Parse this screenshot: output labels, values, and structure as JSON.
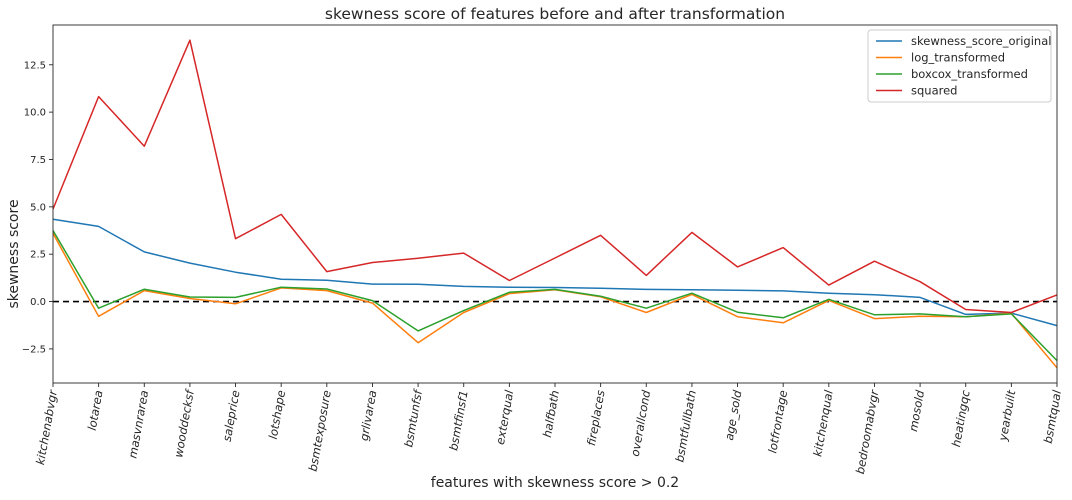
{
  "chart_data": {
    "type": "line",
    "title": "skewness score of features before and after transformation",
    "xlabel": "features with skewness score > 0.2",
    "ylabel": "skewness score",
    "categories": [
      "kitchenabvgr",
      "lotarea",
      "masvnrarea",
      "wooddecksf",
      "saleprice",
      "lotshape",
      "bsmtexposure",
      "grlivarea",
      "bsmtunfsf",
      "bsmtfinsf1",
      "exterqual",
      "halfbath",
      "fireplaces",
      "overallcond",
      "bsmtfullbath",
      "age_sold",
      "lotfrontage",
      "kitchenqual",
      "bedroomabvgr",
      "mosold",
      "heatingqc",
      "yearbuilt",
      "bsmtqual"
    ],
    "ylim": [
      -4.3,
      14.6
    ],
    "yticks": [
      -2.5,
      0.0,
      2.5,
      5.0,
      7.5,
      10.0,
      12.5
    ],
    "ytick_labels": [
      "−2.5",
      "0.0",
      "2.5",
      "5.0",
      "7.5",
      "10.0",
      "12.5"
    ],
    "reference_line": 0,
    "legend_position": "top-right",
    "grid": false,
    "series": [
      {
        "name": "skewness_score_original",
        "color": "#1f77b4",
        "values": [
          4.35,
          3.97,
          2.62,
          2.03,
          1.55,
          1.18,
          1.12,
          0.92,
          0.91,
          0.8,
          0.76,
          0.74,
          0.7,
          0.64,
          0.62,
          0.6,
          0.56,
          0.44,
          0.36,
          0.22,
          -0.68,
          -0.61,
          -1.27
        ]
      },
      {
        "name": "log_transformed",
        "color": "#ff7f0e",
        "values": [
          3.6,
          -0.78,
          0.58,
          0.16,
          -0.12,
          0.72,
          0.58,
          -0.08,
          -2.17,
          -0.58,
          0.42,
          0.62,
          0.25,
          -0.58,
          0.38,
          -0.8,
          -1.12,
          0.06,
          -0.9,
          -0.78,
          -0.8,
          -0.62,
          -3.5
        ]
      },
      {
        "name": "boxcox_transformed",
        "color": "#2ca02c",
        "values": [
          3.75,
          -0.35,
          0.65,
          0.24,
          0.22,
          0.76,
          0.66,
          0.05,
          -1.55,
          -0.48,
          0.49,
          0.64,
          0.28,
          -0.35,
          0.44,
          -0.56,
          -0.86,
          0.12,
          -0.7,
          -0.65,
          -0.8,
          -0.65,
          -3.12
        ]
      },
      {
        "name": "squared",
        "color": "#d62728",
        "values": [
          4.88,
          10.82,
          8.2,
          13.8,
          3.32,
          4.6,
          1.58,
          2.06,
          2.29,
          2.56,
          1.11,
          2.3,
          3.5,
          1.38,
          3.65,
          1.83,
          2.85,
          0.87,
          2.13,
          1.05,
          -0.42,
          -0.58,
          0.35
        ]
      }
    ]
  }
}
